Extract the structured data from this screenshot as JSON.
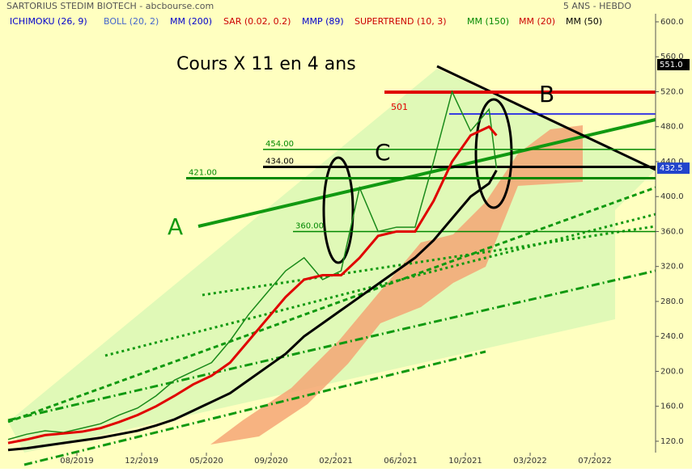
{
  "header": {
    "title": "SARTORIUS STEDIM BIOTECH - abcbourse.com",
    "period": "5 ANS - HEBDO"
  },
  "chart_data": {
    "type": "line",
    "annotations": {
      "main": "Cours X 11 en 4 ans",
      "a": "A",
      "b": "B",
      "c": "C",
      "level": "501"
    },
    "indicators": [
      {
        "name": "ICHIMOKU (26, 9)",
        "color": "#0000cc"
      },
      {
        "name": "BOLL (20, 2)",
        "color": "#4466cc"
      },
      {
        "name": "MM (200)",
        "color": "#0000cc"
      },
      {
        "name": "SAR (0.02, 0.2)",
        "color": "#cc0000"
      },
      {
        "name": "MMP (89)",
        "color": "#0000cc"
      },
      {
        "name": "SUPERTREND (10, 3)",
        "color": "#cc0000"
      },
      {
        "name": "MM (150)",
        "color": "#008800"
      },
      {
        "name": "MM (20)",
        "color": "#cc0000"
      },
      {
        "name": "MM (50)",
        "color": "#000000"
      }
    ],
    "x": [
      0,
      5,
      10,
      15,
      20,
      25,
      30,
      35,
      40,
      45,
      50,
      55,
      60,
      65,
      70,
      75,
      80,
      85,
      90,
      95,
      100,
      105,
      110,
      115,
      120,
      125,
      130,
      132
    ],
    "series": [
      {
        "name": "Cours",
        "color": "#1a8a1a",
        "values": [
          122,
          128,
          132,
          130,
          135,
          140,
          150,
          158,
          172,
          190,
          200,
          210,
          235,
          265,
          290,
          315,
          330,
          305,
          315,
          410,
          360,
          365,
          365,
          440,
          520,
          475,
          500,
          432.5
        ]
      },
      {
        "name": "MM (20)",
        "color": "#e00000",
        "values": [
          118,
          122,
          127,
          129,
          131,
          135,
          142,
          150,
          160,
          172,
          185,
          195,
          210,
          235,
          260,
          285,
          305,
          310,
          310,
          330,
          355,
          360,
          360,
          395,
          440,
          470,
          480,
          470
        ]
      },
      {
        "name": "MM (50)",
        "color": "#000000",
        "values": [
          110,
          112,
          115,
          118,
          121,
          124,
          128,
          132,
          138,
          145,
          155,
          165,
          175,
          190,
          205,
          220,
          240,
          255,
          270,
          285,
          300,
          315,
          330,
          350,
          375,
          400,
          415,
          430
        ]
      }
    ],
    "levels": [
      {
        "value": 454,
        "label": "454.00",
        "color": "#008800"
      },
      {
        "value": 434,
        "label": "434.00",
        "color": "#000000"
      },
      {
        "value": 421,
        "label": "421.00",
        "color": "#008800"
      },
      {
        "value": 360,
        "label": "360.00",
        "color": "#008800"
      }
    ],
    "price_labels": [
      {
        "value": 551,
        "label": "551.0",
        "color": "#000000"
      },
      {
        "value": 432.5,
        "label": "432.5",
        "color": "#2244cc"
      }
    ],
    "xlim": [
      0,
      175
    ],
    "xticks": [
      {
        "value": 18.6,
        "label": "08/2019"
      },
      {
        "value": 36.1,
        "label": "12/2019"
      },
      {
        "value": 53.6,
        "label": "05/2020"
      },
      {
        "value": 71.1,
        "label": "09/2020"
      },
      {
        "value": 88.6,
        "label": "02/2021"
      },
      {
        "value": 106.1,
        "label": "06/2021"
      },
      {
        "value": 123.6,
        "label": "10/2021"
      },
      {
        "value": 141.1,
        "label": "03/2022"
      },
      {
        "value": 158.6,
        "label": "07/2022"
      }
    ],
    "ylim": [
      107,
      600
    ],
    "yticks": [
      {
        "value": 120,
        "label": "120.0"
      },
      {
        "value": 160,
        "label": "160.0"
      },
      {
        "value": 200,
        "label": "200.0"
      },
      {
        "value": 240,
        "label": "240.0"
      },
      {
        "value": 280,
        "label": "280.0"
      },
      {
        "value": 320,
        "label": "320.0"
      },
      {
        "value": 360,
        "label": "360.0"
      },
      {
        "value": 400,
        "label": "400.0"
      },
      {
        "value": 440,
        "label": "440.0"
      },
      {
        "value": 480,
        "label": "480.0"
      },
      {
        "value": 520,
        "label": "520.0"
      },
      {
        "value": 560,
        "label": "560.0"
      },
      {
        "value": 600,
        "label": "600.0"
      }
    ]
  }
}
